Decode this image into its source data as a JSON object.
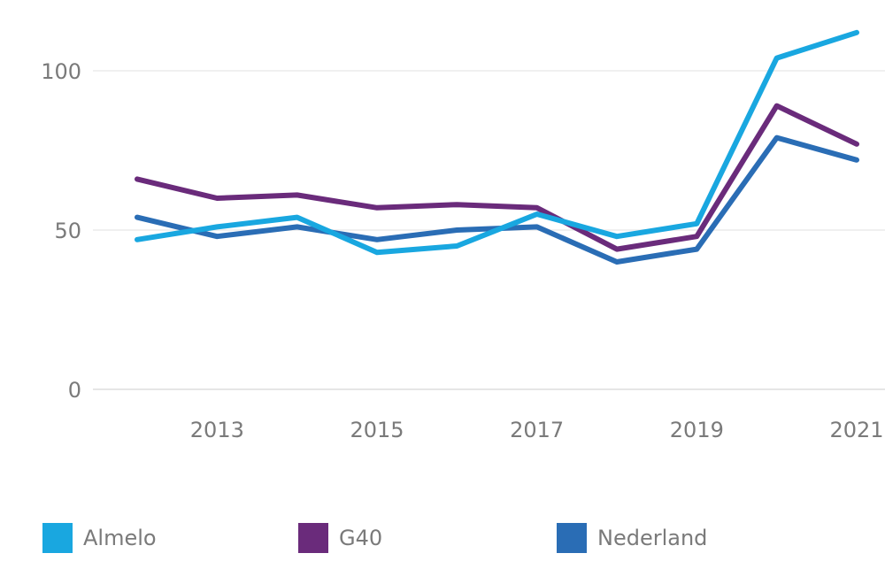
{
  "chart_data": {
    "type": "line",
    "x": [
      2012,
      2013,
      2014,
      2015,
      2016,
      2017,
      2018,
      2019,
      2020,
      2021
    ],
    "x_ticks": [
      "2013",
      "2015",
      "2017",
      "2019",
      "2021"
    ],
    "y_ticks": [
      "0",
      "50",
      "100"
    ],
    "ylim": [
      0,
      115
    ],
    "grid": true,
    "legend_position": "bottom",
    "series": [
      {
        "name": "Almelo",
        "color": "#19a7e0",
        "values": [
          47,
          51,
          54,
          43,
          45,
          55,
          48,
          52,
          104,
          112
        ]
      },
      {
        "name": "G40",
        "color": "#6a2b7b",
        "values": [
          66,
          60,
          61,
          57,
          58,
          57,
          44,
          48,
          89,
          77
        ]
      },
      {
        "name": "Nederland",
        "color": "#2a6db5",
        "values": [
          54,
          48,
          51,
          47,
          50,
          51,
          40,
          44,
          79,
          72
        ]
      }
    ]
  }
}
